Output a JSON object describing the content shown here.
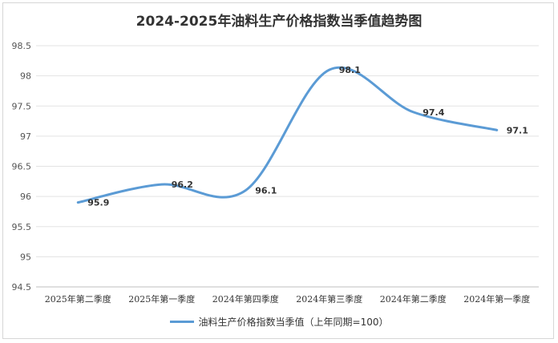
{
  "chart_data": {
    "type": "line",
    "title": "2024-2025年油料生产价格指数当季值趋势图",
    "categories": [
      "2025年第二季度",
      "2025年第一季度",
      "2024年第四季度",
      "2024年第三季度",
      "2024年第二季度",
      "2024年第一季度"
    ],
    "series": [
      {
        "name": "油料生产价格指数当季值（上年同期=100）",
        "values": [
          95.9,
          96.2,
          96.1,
          98.1,
          97.4,
          97.1
        ],
        "color": "#5b9bd5"
      }
    ],
    "ylim": [
      94.5,
      98.5
    ],
    "yticks": [
      94.5,
      95,
      95.5,
      96,
      96.5,
      97,
      97.5,
      98,
      98.5
    ],
    "grid": true,
    "legend": "bottom",
    "smooth": true
  }
}
